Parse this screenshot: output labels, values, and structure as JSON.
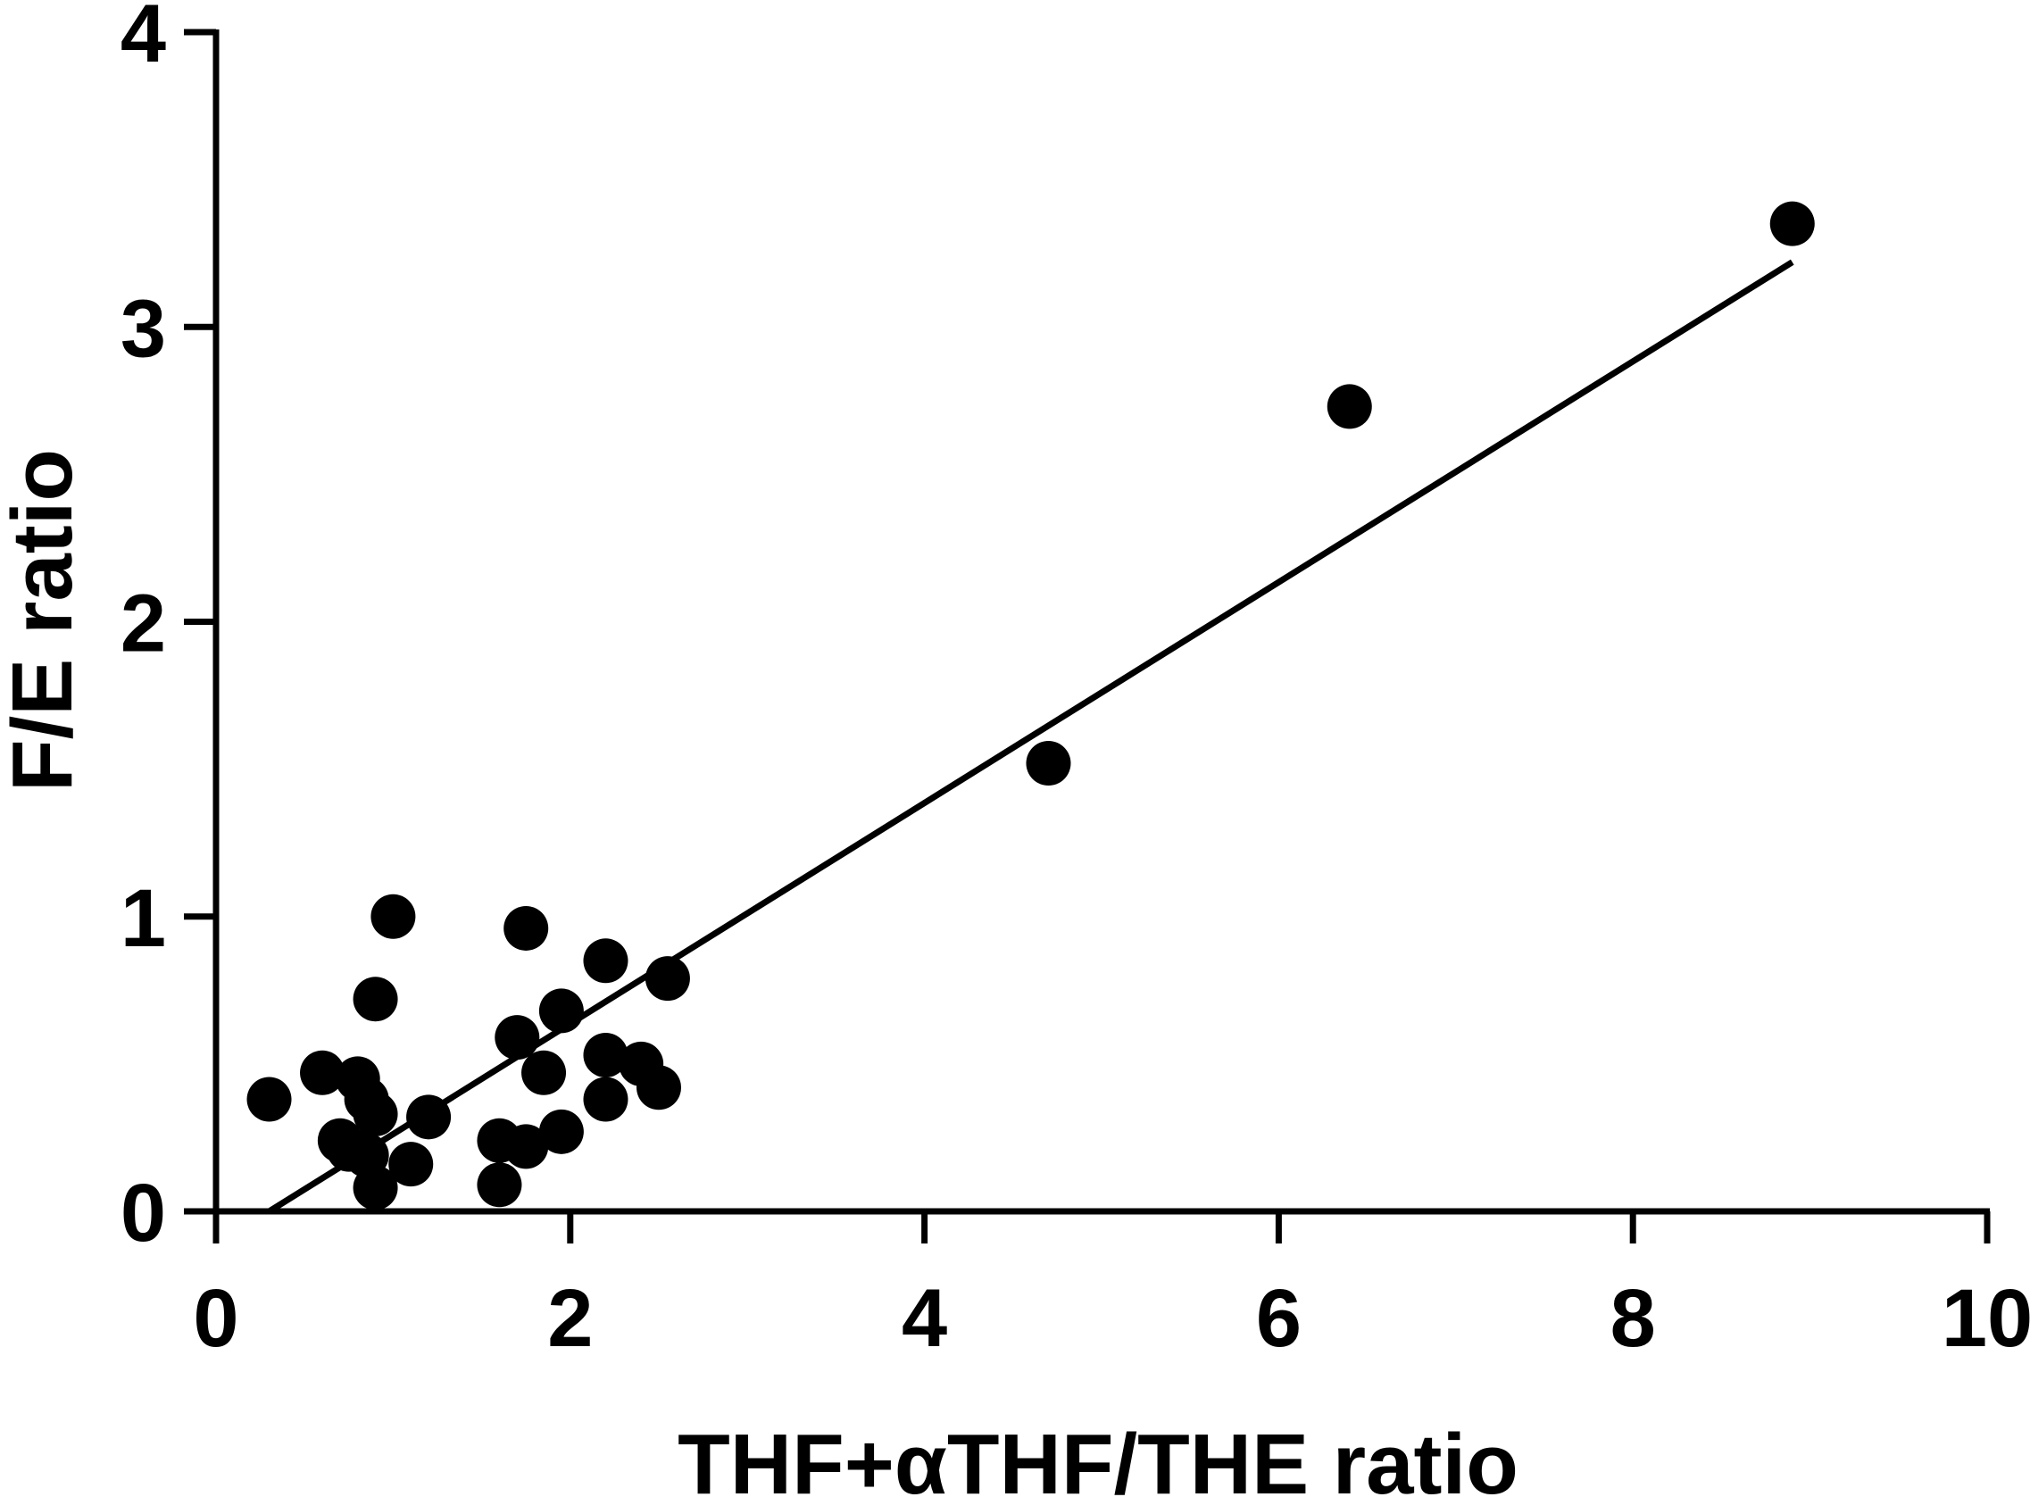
{
  "chart_data": {
    "type": "scatter",
    "xlabel": "THF+αTHF/THE ratio",
    "ylabel": "F/E ratio",
    "xlim": [
      0,
      10
    ],
    "ylim": [
      0,
      4
    ],
    "x_ticks": [
      "0",
      "2",
      "4",
      "6",
      "8",
      "10"
    ],
    "y_ticks": [
      "0",
      "1",
      "2",
      "3",
      "4"
    ],
    "x_tick_values": [
      0,
      2,
      4,
      6,
      8,
      10
    ],
    "y_tick_values": [
      0,
      1,
      2,
      3,
      4
    ],
    "grid": false,
    "legend": "none",
    "series": [
      {
        "points": [
          [
            0.3,
            0.38
          ],
          [
            0.6,
            0.47
          ],
          [
            0.8,
            0.45
          ],
          [
            0.85,
            0.38
          ],
          [
            0.9,
            0.33
          ],
          [
            0.7,
            0.24
          ],
          [
            0.75,
            0.21
          ],
          [
            0.85,
            0.19
          ],
          [
            0.9,
            0.08
          ],
          [
            0.9,
            0.72
          ],
          [
            1.0,
            1.0
          ],
          [
            1.1,
            0.16
          ],
          [
            1.2,
            0.32
          ],
          [
            1.6,
            0.24
          ],
          [
            1.6,
            0.09
          ],
          [
            1.7,
            0.59
          ],
          [
            1.75,
            0.96
          ],
          [
            1.75,
            0.22
          ],
          [
            1.85,
            0.47
          ],
          [
            1.95,
            0.27
          ],
          [
            1.95,
            0.68
          ],
          [
            2.2,
            0.85
          ],
          [
            2.2,
            0.53
          ],
          [
            2.2,
            0.38
          ],
          [
            2.4,
            0.5
          ],
          [
            2.5,
            0.42
          ],
          [
            2.55,
            0.79
          ],
          [
            4.7,
            1.52
          ],
          [
            6.4,
            2.73
          ],
          [
            8.9,
            3.35
          ]
        ]
      }
    ],
    "fit_line": {
      "x": [
        0.3,
        8.9
      ],
      "y": [
        0.0,
        3.22
      ]
    }
  }
}
